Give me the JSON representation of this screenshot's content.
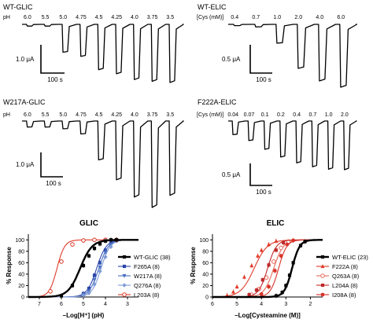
{
  "traces": [
    {
      "panel_label": "WT-GLIC",
      "conc_label": "pH",
      "values": [
        "6.0",
        "5.5",
        "5.0",
        "4.75",
        "4.5",
        "4.25",
        "4.0",
        "3.75",
        "3.5"
      ],
      "scale_current": "1.0 μA",
      "scale_time": "100 s",
      "peaks": [
        0.03,
        0.03,
        0.48,
        0.55,
        0.78,
        0.85,
        0.95,
        0.98,
        1.0
      ]
    },
    {
      "panel_label": "WT-ELIC",
      "conc_label": "[Cys (mM)]",
      "values": [
        "0.4",
        "0.7",
        "1.0",
        "2.0",
        "4.0",
        "6.0"
      ],
      "scale_current": "0.5 μA",
      "scale_time": "100 s",
      "peaks": [
        0.02,
        0.04,
        0.3,
        0.7,
        0.9,
        1.0
      ]
    },
    {
      "panel_label": "W217A-GLIC",
      "conc_label": "pH",
      "values": [
        "6.0",
        "5.5",
        "5.0",
        "4.75",
        "4.5",
        "4.25",
        "4.0",
        "3.75",
        "3.5"
      ],
      "scale_current": "1.0 μA",
      "scale_time": "100 s",
      "peaks": [
        0.07,
        0.07,
        0.09,
        0.15,
        0.45,
        0.68,
        0.88,
        1.0,
        0.86
      ]
    },
    {
      "panel_label": "F222A-ELIC",
      "conc_label": "[Cys (mM)]",
      "values": [
        "0.04",
        "0.07",
        "0.1",
        "0.2",
        "0.4",
        "0.7",
        "1.0",
        "2.0"
      ],
      "scale_current": "0.5 μA",
      "scale_time": "100 s",
      "peaks": [
        0.28,
        0.4,
        0.58,
        0.74,
        0.86,
        0.94,
        0.99,
        1.0
      ]
    }
  ],
  "chart_data": [
    {
      "type": "line",
      "title": "GLIC",
      "xlabel": "–Log[H⁺] (pH)",
      "ylabel": "% Response",
      "x_reversed": true,
      "xlim": [
        7.5,
        2.5
      ],
      "ylim": [
        0,
        110
      ],
      "xticks": [
        "7",
        "6",
        "5",
        "4",
        "3"
      ],
      "yticks": [
        "0",
        "20",
        "40",
        "60",
        "80",
        "100"
      ],
      "legend_position": "right",
      "series": [
        {
          "name": "WT-GLIC (38)",
          "color": "#000000",
          "marker": "square",
          "line_width": 2.4,
          "ec50": 5.15,
          "hill": 1.6,
          "points": [
            [
              6.0,
              2
            ],
            [
              5.5,
              20
            ],
            [
              5.0,
              55
            ],
            [
              4.75,
              72
            ],
            [
              4.5,
              85
            ],
            [
              4.25,
              93
            ],
            [
              4.0,
              98
            ],
            [
              3.75,
              100
            ],
            [
              3.5,
              100
            ]
          ]
        },
        {
          "name": "F265A (8)",
          "color": "#2a44a8",
          "marker": "square",
          "line_width": 1.1,
          "ec50": 4.4,
          "hill": 2.0,
          "points": [
            [
              5.0,
              6
            ],
            [
              4.75,
              15
            ],
            [
              4.5,
              38
            ],
            [
              4.25,
              60
            ],
            [
              4.0,
              82
            ],
            [
              3.75,
              94
            ],
            [
              3.5,
              99
            ]
          ]
        },
        {
          "name": "W217A (8)",
          "color": "#4a6fc0",
          "marker": "triangle-down",
          "line_width": 1.1,
          "ec50": 4.3,
          "hill": 2.0,
          "points": [
            [
              5.0,
              4
            ],
            [
              4.75,
              10
            ],
            [
              4.5,
              30
            ],
            [
              4.25,
              52
            ],
            [
              4.0,
              78
            ],
            [
              3.75,
              92
            ],
            [
              3.5,
              99
            ]
          ]
        },
        {
          "name": "Q276A (8)",
          "color": "#7f9bd6",
          "marker": "diamond",
          "line_width": 1.1,
          "ec50": 4.2,
          "hill": 2.1,
          "points": [
            [
              5.0,
              3
            ],
            [
              4.75,
              7
            ],
            [
              4.5,
              22
            ],
            [
              4.25,
              45
            ],
            [
              4.0,
              70
            ],
            [
              3.75,
              88
            ],
            [
              3.5,
              98
            ]
          ]
        },
        {
          "name": "L203A (8)",
          "color": "#e03a2a",
          "marker": "circle-open",
          "line_width": 1.1,
          "ec50": 6.2,
          "hill": 2.5,
          "points": [
            [
              6.5,
              10
            ],
            [
              6.0,
              62
            ],
            [
              5.5,
              92
            ],
            [
              5.0,
              99
            ],
            [
              4.5,
              100
            ],
            [
              4.0,
              100
            ],
            [
              3.5,
              100
            ]
          ]
        }
      ]
    },
    {
      "type": "line",
      "title": "ELIC",
      "xlabel": "–Log[Cysteamine (M)]",
      "ylabel": "% Response",
      "x_reversed": true,
      "xlim": [
        6,
        1.5
      ],
      "ylim": [
        0,
        110
      ],
      "xticks": [
        "6",
        "5",
        "4",
        "3",
        "2"
      ],
      "yticks": [
        "0",
        "20",
        "40",
        "60",
        "80",
        "100"
      ],
      "legend_position": "right",
      "series": [
        {
          "name": "WT-ELIC (23)",
          "color": "#000000",
          "marker": "square",
          "line_width": 2.4,
          "ec50": 2.75,
          "hill": 2.8,
          "points": [
            [
              3.4,
              2
            ],
            [
              3.15,
              8
            ],
            [
              3.0,
              20
            ],
            [
              2.85,
              38
            ],
            [
              2.7,
              60
            ],
            [
              2.4,
              90
            ],
            [
              2.22,
              97
            ]
          ]
        },
        {
          "name": "F222A (8)",
          "color": "#e03a2a",
          "marker": "triangle-up",
          "line_width": 1.1,
          "ec50": 4.3,
          "hill": 1.6,
          "points": [
            [
              5.4,
              3
            ],
            [
              5.15,
              9
            ],
            [
              5.0,
              18
            ],
            [
              4.7,
              35
            ],
            [
              4.4,
              55
            ],
            [
              4.15,
              72
            ],
            [
              4.0,
              82
            ],
            [
              3.7,
              92
            ],
            [
              3.4,
              98
            ]
          ]
        },
        {
          "name": "Q263A (8)",
          "color": "#e86a5a",
          "marker": "circle-open",
          "line_width": 1.1,
          "ec50": 3.5,
          "hill": 2.2,
          "points": [
            [
              4.4,
              4
            ],
            [
              4.1,
              14
            ],
            [
              3.8,
              34
            ],
            [
              3.5,
              62
            ],
            [
              3.2,
              86
            ],
            [
              2.9,
              97
            ]
          ]
        },
        {
          "name": "L204A (8)",
          "color": "#c0292b",
          "marker": "square",
          "line_width": 1.1,
          "ec50": 3.75,
          "hill": 2.4,
          "points": [
            [
              4.5,
              4
            ],
            [
              4.2,
              12
            ],
            [
              3.95,
              30
            ],
            [
              3.7,
              56
            ],
            [
              3.4,
              82
            ],
            [
              3.1,
              95
            ]
          ]
        },
        {
          "name": "I208A (8)",
          "color": "#d8332a",
          "marker": "circle",
          "line_width": 1.1,
          "ec50": 3.3,
          "hill": 2.6,
          "points": [
            [
              4.0,
              5
            ],
            [
              3.7,
              18
            ],
            [
              3.45,
              46
            ],
            [
              3.2,
              72
            ],
            [
              2.95,
              92
            ],
            [
              2.7,
              99
            ]
          ]
        }
      ]
    }
  ]
}
